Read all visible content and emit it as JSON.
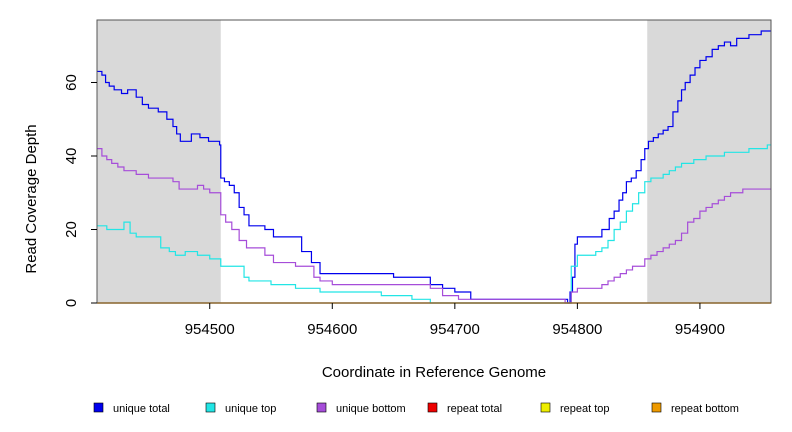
{
  "chart_data": {
    "type": "line",
    "step": true,
    "xlabel": "Coordinate in Reference Genome",
    "ylabel": "Read Coverage Depth",
    "xlim": [
      954408,
      954958
    ],
    "ylim": [
      0,
      77
    ],
    "x_ticks": [
      954500,
      954600,
      954700,
      954800,
      954900
    ],
    "y_ticks": [
      0,
      20,
      40,
      60
    ],
    "shaded_regions": [
      [
        954408,
        954509
      ],
      [
        954857,
        954958
      ]
    ],
    "shade_color": "#d9d9d9",
    "legend_position": "bottom",
    "series": [
      {
        "name": "unique total",
        "color": "#0000ee",
        "points": [
          [
            954408,
            63
          ],
          [
            954412,
            62
          ],
          [
            954415,
            60
          ],
          [
            954418,
            59
          ],
          [
            954422,
            58
          ],
          [
            954428,
            57
          ],
          [
            954433,
            58
          ],
          [
            954440,
            56
          ],
          [
            954445,
            54
          ],
          [
            954450,
            53
          ],
          [
            954458,
            52
          ],
          [
            954465,
            50
          ],
          [
            954470,
            48
          ],
          [
            954473,
            46
          ],
          [
            954476,
            44
          ],
          [
            954485,
            46
          ],
          [
            954492,
            45
          ],
          [
            954499,
            44
          ],
          [
            954508,
            43
          ],
          [
            954509,
            34
          ],
          [
            954512,
            33
          ],
          [
            954516,
            32
          ],
          [
            954520,
            30
          ],
          [
            954524,
            26
          ],
          [
            954528,
            24
          ],
          [
            954532,
            21
          ],
          [
            954545,
            20
          ],
          [
            954552,
            18
          ],
          [
            954575,
            14
          ],
          [
            954583,
            11
          ],
          [
            954590,
            8
          ],
          [
            954650,
            7
          ],
          [
            954680,
            5
          ],
          [
            954690,
            4
          ],
          [
            954700,
            3
          ],
          [
            954713,
            1
          ],
          [
            954792,
            0
          ],
          [
            954794,
            3
          ],
          [
            954796,
            7
          ],
          [
            954798,
            16
          ],
          [
            954800,
            18
          ],
          [
            954820,
            20
          ],
          [
            954826,
            23
          ],
          [
            954830,
            25
          ],
          [
            954834,
            28
          ],
          [
            954837,
            30
          ],
          [
            954840,
            33
          ],
          [
            954844,
            34
          ],
          [
            954848,
            36
          ],
          [
            954852,
            39
          ],
          [
            954855,
            42
          ],
          [
            954858,
            44
          ],
          [
            954862,
            45
          ],
          [
            954866,
            46
          ],
          [
            954870,
            47
          ],
          [
            954874,
            48
          ],
          [
            954878,
            52
          ],
          [
            954882,
            55
          ],
          [
            954885,
            58
          ],
          [
            954888,
            60
          ],
          [
            954892,
            62
          ],
          [
            954896,
            64
          ],
          [
            954900,
            66
          ],
          [
            954905,
            67
          ],
          [
            954910,
            69
          ],
          [
            954915,
            70
          ],
          [
            954920,
            71
          ],
          [
            954925,
            70
          ],
          [
            954930,
            72
          ],
          [
            954940,
            73
          ],
          [
            954950,
            74
          ],
          [
            954958,
            74
          ]
        ]
      },
      {
        "name": "unique top",
        "color": "#22e5e5",
        "points": [
          [
            954408,
            21
          ],
          [
            954416,
            20
          ],
          [
            954430,
            22
          ],
          [
            954435,
            19
          ],
          [
            954440,
            18
          ],
          [
            954460,
            15
          ],
          [
            954467,
            14
          ],
          [
            954472,
            13
          ],
          [
            954480,
            14
          ],
          [
            954490,
            13
          ],
          [
            954500,
            12
          ],
          [
            954509,
            10
          ],
          [
            954528,
            7
          ],
          [
            954532,
            6
          ],
          [
            954550,
            5
          ],
          [
            954570,
            4
          ],
          [
            954590,
            3
          ],
          [
            954640,
            2
          ],
          [
            954665,
            1
          ],
          [
            954680,
            0
          ],
          [
            954790,
            0
          ],
          [
            954795,
            10
          ],
          [
            954800,
            13
          ],
          [
            954815,
            14
          ],
          [
            954820,
            15
          ],
          [
            954825,
            17
          ],
          [
            954830,
            20
          ],
          [
            954835,
            22
          ],
          [
            954840,
            25
          ],
          [
            954845,
            27
          ],
          [
            954850,
            30
          ],
          [
            954855,
            33
          ],
          [
            954860,
            34
          ],
          [
            954870,
            35
          ],
          [
            954875,
            36
          ],
          [
            954880,
            37
          ],
          [
            954885,
            38
          ],
          [
            954895,
            39
          ],
          [
            954905,
            40
          ],
          [
            954920,
            41
          ],
          [
            954940,
            42
          ],
          [
            954955,
            43
          ],
          [
            954958,
            43
          ]
        ]
      },
      {
        "name": "unique bottom",
        "color": "#a64dd9",
        "points": [
          [
            954408,
            42
          ],
          [
            954412,
            40
          ],
          [
            954416,
            39
          ],
          [
            954420,
            38
          ],
          [
            954425,
            37
          ],
          [
            954430,
            36
          ],
          [
            954440,
            35
          ],
          [
            954450,
            34
          ],
          [
            954470,
            33
          ],
          [
            954475,
            31
          ],
          [
            954490,
            32
          ],
          [
            954495,
            31
          ],
          [
            954500,
            30
          ],
          [
            954509,
            24
          ],
          [
            954513,
            22
          ],
          [
            954518,
            20
          ],
          [
            954524,
            17
          ],
          [
            954530,
            15
          ],
          [
            954545,
            13
          ],
          [
            954552,
            11
          ],
          [
            954570,
            10
          ],
          [
            954585,
            7
          ],
          [
            954590,
            6
          ],
          [
            954600,
            5
          ],
          [
            954680,
            4
          ],
          [
            954690,
            2
          ],
          [
            954703,
            1
          ],
          [
            954790,
            0
          ],
          [
            954795,
            3
          ],
          [
            954800,
            4
          ],
          [
            954820,
            5
          ],
          [
            954825,
            6
          ],
          [
            954830,
            7
          ],
          [
            954835,
            8
          ],
          [
            954840,
            9
          ],
          [
            954845,
            10
          ],
          [
            954855,
            12
          ],
          [
            954860,
            13
          ],
          [
            954865,
            14
          ],
          [
            954870,
            15
          ],
          [
            954875,
            16
          ],
          [
            954880,
            17
          ],
          [
            954885,
            19
          ],
          [
            954890,
            22
          ],
          [
            954895,
            23
          ],
          [
            954900,
            25
          ],
          [
            954905,
            26
          ],
          [
            954910,
            27
          ],
          [
            954915,
            28
          ],
          [
            954920,
            29
          ],
          [
            954925,
            30
          ],
          [
            954935,
            31
          ],
          [
            954958,
            31
          ]
        ]
      },
      {
        "name": "repeat total",
        "color": "#ee0000",
        "points": [
          [
            954408,
            0
          ],
          [
            954958,
            0
          ]
        ]
      },
      {
        "name": "repeat top",
        "color": "#eeee00",
        "points": [
          [
            954408,
            0
          ],
          [
            954958,
            0
          ]
        ]
      },
      {
        "name": "repeat bottom",
        "color": "#ee9a00",
        "points": [
          [
            954408,
            0
          ],
          [
            954958,
            0
          ]
        ]
      }
    ]
  }
}
